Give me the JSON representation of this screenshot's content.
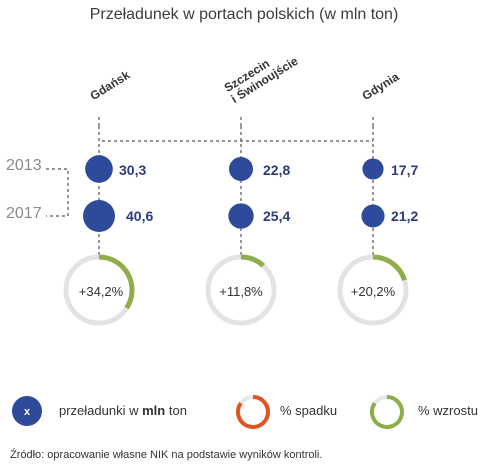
{
  "chart_data": {
    "type": "bubble",
    "title": "Przeładunek w portach polskich (w mln ton)",
    "categories": [
      "Gdańsk",
      "Szczecin\ni Świnoujście",
      "Gdynia"
    ],
    "series": [
      {
        "name": "2013",
        "values": [
          30.3,
          22.8,
          17.7
        ],
        "labels": [
          "30,3",
          "22,8",
          "17,7"
        ]
      },
      {
        "name": "2017",
        "values": [
          40.6,
          25.4,
          21.2
        ],
        "labels": [
          "40,6",
          "25,4",
          "21,2"
        ]
      }
    ],
    "growth": [
      {
        "value": 34.2,
        "label": "+34,2%"
      },
      {
        "value": 11.8,
        "label": "+11,8%"
      },
      {
        "value": 20.2,
        "label": "+20,2%"
      }
    ],
    "colors": {
      "bubble": "#2e4a9b",
      "growth": "#8fae4a",
      "decline": "#e0551f",
      "track": "#e3e3e3"
    }
  },
  "legend": {
    "bubble_symbol": "x",
    "bubble_prefix": "przeładunki w ",
    "bubble_bold": "mln",
    "bubble_suffix": " ton",
    "decline": "% spadku",
    "growth": "% wzrostu"
  },
  "source": "Źródło: opracowanie własne NIK na podstawie wyników kontroli."
}
